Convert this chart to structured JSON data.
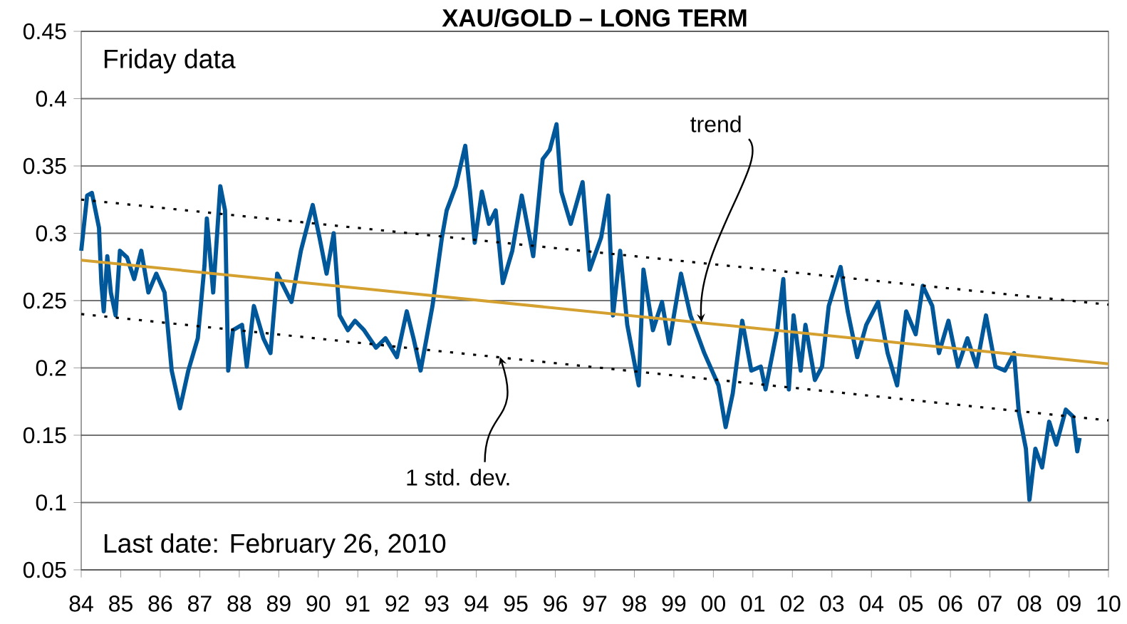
{
  "chart_data": {
    "type": "line",
    "title": "XAU/GOLD – LONG TERM",
    "xlim": [
      1984,
      2010
    ],
    "xticks": [
      {
        "value": 1984,
        "label": "84"
      },
      {
        "value": 1985,
        "label": "85"
      },
      {
        "value": 1986,
        "label": "86"
      },
      {
        "value": 1987,
        "label": "87"
      },
      {
        "value": 1988,
        "label": "88"
      },
      {
        "value": 1989,
        "label": "89"
      },
      {
        "value": 1990,
        "label": "90"
      },
      {
        "value": 1991,
        "label": "91"
      },
      {
        "value": 1992,
        "label": "92"
      },
      {
        "value": 1993,
        "label": "93"
      },
      {
        "value": 1994,
        "label": "94"
      },
      {
        "value": 1995,
        "label": "95"
      },
      {
        "value": 1996,
        "label": "96"
      },
      {
        "value": 1997,
        "label": "97"
      },
      {
        "value": 1998,
        "label": "98"
      },
      {
        "value": 1999,
        "label": "99"
      },
      {
        "value": 2000,
        "label": "00"
      },
      {
        "value": 2001,
        "label": "01"
      },
      {
        "value": 2002,
        "label": "02"
      },
      {
        "value": 2003,
        "label": "03"
      },
      {
        "value": 2004,
        "label": "04"
      },
      {
        "value": 2005,
        "label": "05"
      },
      {
        "value": 2006,
        "label": "06"
      },
      {
        "value": 2007,
        "label": "07"
      },
      {
        "value": 2008,
        "label": "08"
      },
      {
        "value": 2009,
        "label": "09"
      },
      {
        "value": 2010,
        "label": "10"
      }
    ],
    "ylim": [
      0.05,
      0.45
    ],
    "yticks": [
      0.05,
      0.1,
      0.15,
      0.2,
      0.25,
      0.3,
      0.35,
      0.4,
      0.45
    ],
    "grid": "y",
    "series": [
      {
        "color": "#00589a",
        "x": [
          1984.0,
          1984.15,
          1984.27,
          1984.45,
          1984.51,
          1984.57,
          1984.66,
          1984.75,
          1984.87,
          1984.98,
          1985.16,
          1985.34,
          1985.52,
          1985.7,
          1985.9,
          1986.11,
          1986.29,
          1986.5,
          1986.71,
          1986.95,
          1987.12,
          1987.18,
          1987.34,
          1987.52,
          1987.64,
          1987.72,
          1987.84,
          1988.07,
          1988.19,
          1988.37,
          1988.61,
          1988.79,
          1988.96,
          1989.32,
          1989.56,
          1989.86,
          1990.03,
          1990.21,
          1990.39,
          1990.54,
          1990.75,
          1990.93,
          1991.16,
          1991.46,
          1991.7,
          1991.99,
          1992.24,
          1992.41,
          1992.59,
          1992.89,
          1993.13,
          1993.25,
          1993.48,
          1993.72,
          1993.84,
          1993.96,
          1994.14,
          1994.32,
          1994.49,
          1994.67,
          1994.91,
          1995.15,
          1995.44,
          1995.68,
          1995.86,
          1996.03,
          1996.15,
          1996.39,
          1996.69,
          1996.87,
          1997.16,
          1997.34,
          1997.46,
          1997.64,
          1997.82,
          1998.11,
          1998.23,
          1998.47,
          1998.7,
          1998.88,
          1999.18,
          1999.42,
          1999.77,
          2000.13,
          2000.31,
          2000.49,
          2000.73,
          2000.96,
          2001.2,
          2001.32,
          2001.62,
          2001.77,
          2001.91,
          2002.03,
          2002.21,
          2002.33,
          2002.57,
          2002.75,
          2002.92,
          2003.22,
          2003.4,
          2003.64,
          2003.87,
          2004.17,
          2004.41,
          2004.65,
          2004.88,
          2005.12,
          2005.3,
          2005.54,
          2005.71,
          2005.95,
          2006.19,
          2006.43,
          2006.66,
          2006.9,
          2007.14,
          2007.38,
          2007.61,
          2007.73,
          2007.91,
          2008.0,
          2008.15,
          2008.32,
          2008.5,
          2008.68,
          2008.92,
          2009.1,
          2009.21,
          2009.27
        ],
        "values": [
          0.287,
          0.328,
          0.33,
          0.304,
          0.263,
          0.242,
          0.283,
          0.256,
          0.239,
          0.287,
          0.282,
          0.266,
          0.287,
          0.256,
          0.27,
          0.256,
          0.198,
          0.17,
          0.198,
          0.222,
          0.276,
          0.311,
          0.256,
          0.335,
          0.317,
          0.198,
          0.228,
          0.232,
          0.201,
          0.246,
          0.222,
          0.211,
          0.27,
          0.249,
          0.287,
          0.321,
          0.297,
          0.27,
          0.3,
          0.239,
          0.228,
          0.235,
          0.228,
          0.215,
          0.222,
          0.208,
          0.242,
          0.222,
          0.198,
          0.246,
          0.297,
          0.317,
          0.335,
          0.365,
          0.331,
          0.293,
          0.331,
          0.307,
          0.317,
          0.263,
          0.287,
          0.328,
          0.283,
          0.355,
          0.362,
          0.381,
          0.331,
          0.307,
          0.338,
          0.273,
          0.297,
          0.328,
          0.239,
          0.287,
          0.232,
          0.187,
          0.273,
          0.228,
          0.249,
          0.218,
          0.27,
          0.239,
          0.211,
          0.187,
          0.156,
          0.181,
          0.235,
          0.198,
          0.201,
          0.184,
          0.229,
          0.266,
          0.184,
          0.239,
          0.198,
          0.232,
          0.191,
          0.201,
          0.246,
          0.275,
          0.242,
          0.208,
          0.232,
          0.249,
          0.211,
          0.187,
          0.242,
          0.225,
          0.261,
          0.246,
          0.211,
          0.235,
          0.201,
          0.222,
          0.201,
          0.239,
          0.201,
          0.198,
          0.211,
          0.167,
          0.14,
          0.102,
          0.14,
          0.126,
          0.16,
          0.143,
          0.169,
          0.164,
          0.138,
          0.148
        ]
      },
      {
        "color": "#d4a030",
        "x": [
          1984,
          2010
        ],
        "values": [
          0.28,
          0.203
        ]
      },
      {
        "color": "#000000",
        "line_style": "dotted",
        "x": [
          1984,
          2010
        ],
        "values": [
          0.325,
          0.247
        ]
      },
      {
        "color": "#000000",
        "line_style": "dotted",
        "x": [
          1984,
          2010
        ],
        "values": [
          0.24,
          0.161
        ]
      }
    ],
    "annotations": [
      "Friday data",
      "Last date: February 26, 2010",
      {
        "text": "trend",
        "x": 1999.7,
        "y": 0.234
      },
      {
        "text": "1 std. dev.",
        "x": 1994.6,
        "y": 0.208
      }
    ]
  }
}
